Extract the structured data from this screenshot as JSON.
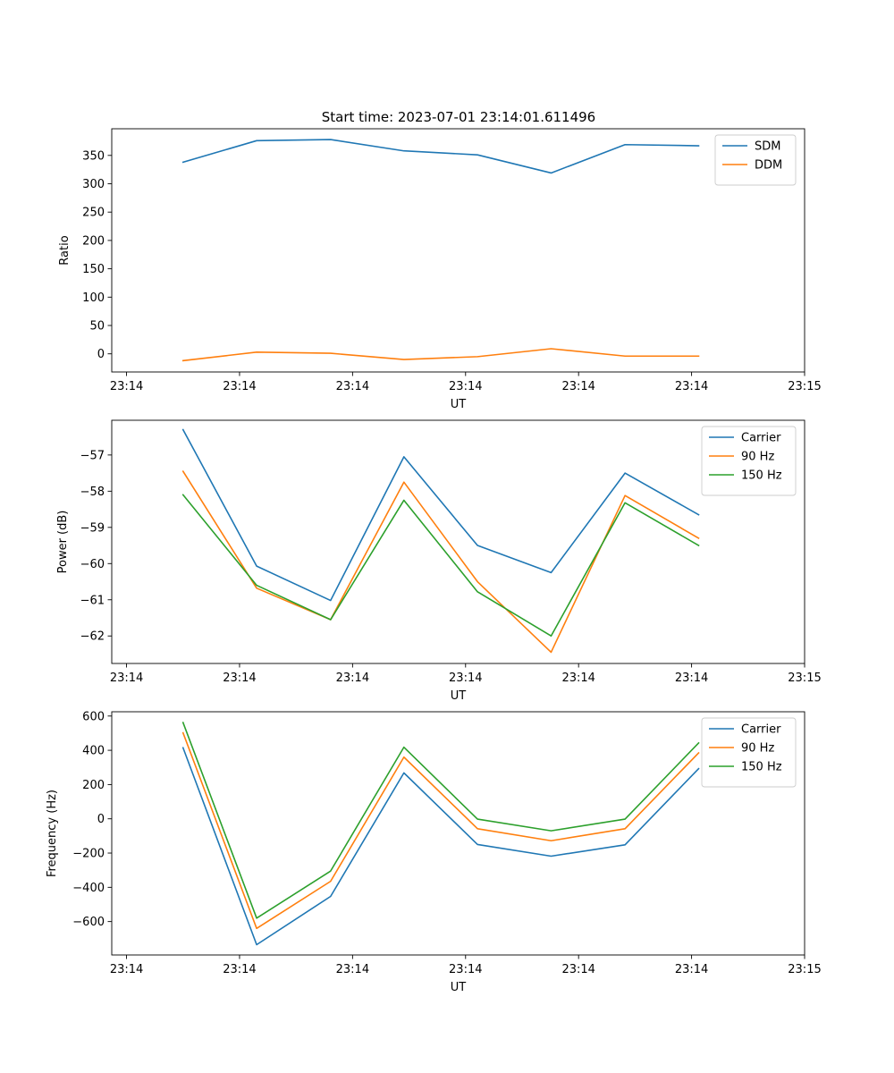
{
  "title": "Start time: 2023-07-01 23:14:01.611496",
  "colors": {
    "c0": "#1f77b4",
    "c1": "#ff7f0e",
    "c2": "#2ca02c"
  },
  "chart_data": [
    {
      "type": "line",
      "title": "Start time: 2023-07-01 23:14:01.611496",
      "xlabel": "UT",
      "ylabel": "Ratio",
      "x_tick_labels": [
        "23:14",
        "23:14",
        "23:14",
        "23:14",
        "23:14",
        "23:14",
        "23:15"
      ],
      "x_ticks": [
        0,
        1,
        2,
        3,
        4,
        5,
        6
      ],
      "xlim": [
        -0.1309,
        6.0
      ],
      "x": [
        0.5,
        1.1512,
        1.8056,
        2.4544,
        3.1056,
        3.7568,
        4.4112,
        5.0624
      ],
      "y_ticks": [
        0,
        50,
        100,
        150,
        200,
        250,
        300,
        350
      ],
      "ylim": [
        -32,
        397
      ],
      "legend": "top-right",
      "grid": false,
      "series": [
        {
          "name": "SDM",
          "values": [
            338,
            376,
            378,
            358,
            351,
            319,
            369,
            367
          ]
        },
        {
          "name": "DDM",
          "values": [
            -12,
            3,
            1,
            -10,
            -5,
            9,
            -4,
            -4
          ]
        }
      ]
    },
    {
      "type": "line",
      "title": "",
      "xlabel": "UT",
      "ylabel": "Power (dB)",
      "x_tick_labels": [
        "23:14",
        "23:14",
        "23:14",
        "23:14",
        "23:14",
        "23:14",
        "23:15"
      ],
      "x_ticks": [
        0,
        1,
        2,
        3,
        4,
        5,
        6
      ],
      "xlim": [
        -0.1309,
        6.0
      ],
      "x": [
        0.5,
        1.1512,
        1.8056,
        2.4544,
        3.1056,
        3.7568,
        4.4112,
        5.0624
      ],
      "y_ticks": [
        -62,
        -61,
        -60,
        -59,
        -58,
        -57
      ],
      "y_tick_labels": [
        "−62",
        "−61",
        "−60",
        "−59",
        "−58",
        "−57"
      ],
      "ylim": [
        -62.76,
        -56.04
      ],
      "legend": "top-right",
      "grid": false,
      "series": [
        {
          "name": "Carrier",
          "values": [
            -56.3,
            -60.07,
            -61.02,
            -57.05,
            -59.5,
            -60.25,
            -57.5,
            -58.65
          ]
        },
        {
          "name": "90 Hz",
          "values": [
            -57.45,
            -60.68,
            -61.55,
            -57.75,
            -60.5,
            -62.45,
            -58.12,
            -59.3
          ]
        },
        {
          "name": "150 Hz",
          "values": [
            -58.1,
            -60.6,
            -61.55,
            -58.25,
            -60.78,
            -62.0,
            -58.32,
            -59.5
          ]
        }
      ]
    },
    {
      "type": "line",
      "title": "",
      "xlabel": "UT",
      "ylabel": "Frequency (Hz)",
      "x_tick_labels": [
        "23:14",
        "23:14",
        "23:14",
        "23:14",
        "23:14",
        "23:14",
        "23:15"
      ],
      "x_ticks": [
        0,
        1,
        2,
        3,
        4,
        5,
        6
      ],
      "xlim": [
        -0.1309,
        6.0
      ],
      "x": [
        0.5,
        1.1512,
        1.8056,
        2.4544,
        3.1056,
        3.7568,
        4.4112,
        5.0624
      ],
      "y_ticks": [
        -600,
        -400,
        -200,
        0,
        200,
        400,
        600
      ],
      "y_tick_labels": [
        "−600",
        "−400",
        "−200",
        "0",
        "200",
        "400",
        "600"
      ],
      "ylim": [
        -795,
        625
      ],
      "legend": "top-right",
      "grid": false,
      "series": [
        {
          "name": "Carrier",
          "values": [
            415,
            -735,
            -453,
            268,
            -150,
            -218,
            -152,
            293
          ]
        },
        {
          "name": "90 Hz",
          "values": [
            502,
            -640,
            -365,
            360,
            -58,
            -128,
            -58,
            385
          ]
        },
        {
          "name": "150 Hz",
          "values": [
            562,
            -580,
            -305,
            418,
            -2,
            -70,
            -2,
            443
          ]
        }
      ]
    }
  ]
}
